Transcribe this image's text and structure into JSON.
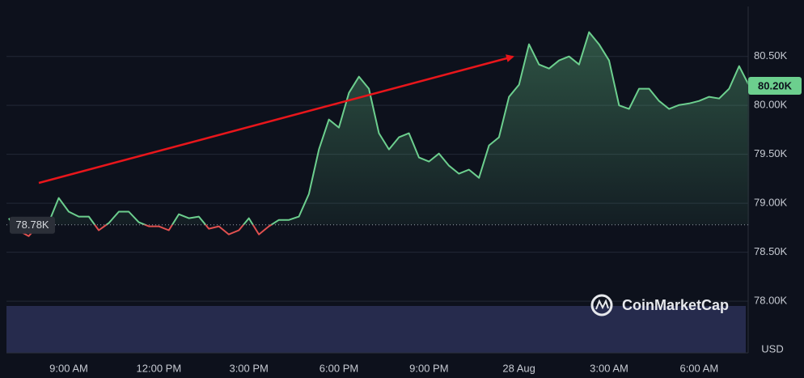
{
  "chart_data": {
    "type": "line",
    "categories": [
      null,
      null,
      null,
      null,
      null,
      null,
      "9:00 AM",
      null,
      null,
      null,
      null,
      null,
      null,
      null,
      null,
      "12:00 PM",
      null,
      null,
      null,
      null,
      null,
      null,
      null,
      null,
      "3:00 PM",
      null,
      null,
      null,
      null,
      null,
      null,
      null,
      null,
      "6:00 PM",
      null,
      null,
      null,
      null,
      null,
      null,
      null,
      null,
      "9:00 PM",
      null,
      null,
      null,
      null,
      null,
      null,
      null,
      null,
      "28 Aug",
      null,
      null,
      null,
      null,
      null,
      null,
      null,
      null,
      "3:00 AM",
      null,
      null,
      null,
      null,
      null,
      null,
      null,
      null,
      "6:00 AM",
      null,
      null,
      null,
      null,
      null
    ],
    "series": [
      {
        "name": "USD",
        "color": "#6ccf8e",
        "below_color": "#e0504f",
        "values": [
          78846,
          78720,
          78665,
          78780,
          78805,
          79054,
          78914,
          78864,
          78864,
          78724,
          78798,
          78914,
          78914,
          78806,
          78765,
          78765,
          78724,
          78888,
          78847,
          78864,
          78740,
          78765,
          78682,
          78724,
          78847,
          78682,
          78765,
          78830,
          78830,
          78864,
          79095,
          79550,
          79855,
          79773,
          80128,
          80293,
          80170,
          79715,
          79550,
          79674,
          79715,
          79467,
          79426,
          79508,
          79384,
          79302,
          79343,
          79260,
          79591,
          79674,
          80087,
          80211,
          80624,
          80417,
          80376,
          80459,
          80500,
          80417,
          80748,
          80624,
          80459,
          80000,
          79963,
          80170,
          80170,
          80045,
          79963,
          80004,
          80020,
          80045,
          80087,
          80070,
          80170,
          80401,
          80200
        ]
      }
    ],
    "ylim": [
      77480,
      81010
    ],
    "yticks": [
      {
        "value": 78000,
        "label": "78.00K"
      },
      {
        "value": 78500,
        "label": "78.50K"
      },
      {
        "value": 79000,
        "label": "79.00K"
      },
      {
        "value": 79500,
        "label": "79.50K"
      },
      {
        "value": 80000,
        "label": "80.00K"
      },
      {
        "value": 80500,
        "label": "80.50K"
      }
    ],
    "reference": {
      "value": 78780,
      "label": "78.78K"
    },
    "current": {
      "value": 80200,
      "label": "80.20K"
    },
    "axis_unit": "USD",
    "watermark": "CoinMarketCap",
    "grid": true
  }
}
